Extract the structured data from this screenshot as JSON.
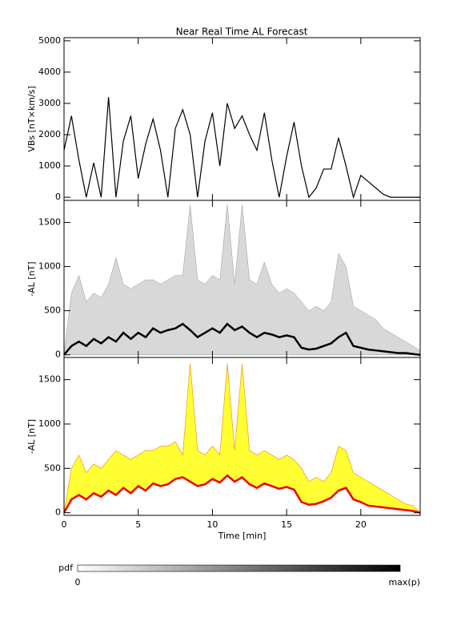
{
  "chart_data": [
    {
      "type": "line",
      "title": "Near Real Time AL Forecast",
      "ylabel": "VBs [nT×km/s]",
      "x": [
        0,
        0.5,
        1,
        1.5,
        2,
        2.5,
        3,
        3.5,
        4,
        4.5,
        5,
        5.5,
        6,
        6.5,
        7,
        7.5,
        8,
        8.5,
        9,
        9.5,
        10,
        10.5,
        11,
        11.5,
        12,
        12.5,
        13,
        13.5,
        14,
        14.5,
        15,
        15.5,
        16,
        16.5,
        17,
        17.5,
        18,
        18.5,
        19,
        19.5,
        20,
        20.5,
        21,
        21.5,
        22,
        22.5,
        23,
        23.5,
        24
      ],
      "series": [
        {
          "color": "#000000",
          "values": [
            1500,
            2600,
            1200,
            0,
            1100,
            0,
            3200,
            0,
            1800,
            2600,
            600,
            1700,
            2500,
            1500,
            0,
            2200,
            2800,
            2000,
            0,
            1800,
            2700,
            1000,
            3000,
            2200,
            2600,
            2000,
            1500,
            2700,
            1200,
            0,
            1300,
            2400,
            1000,
            0,
            300,
            900,
            900,
            1900,
            1000,
            0,
            700,
            500,
            300,
            100,
            0,
            0,
            0,
            0,
            0
          ]
        }
      ],
      "xlim": [
        0,
        24
      ],
      "ylim": [
        -100,
        5100
      ],
      "yticks": [
        0,
        1000,
        2000,
        3000,
        4000,
        5000
      ]
    },
    {
      "type": "density",
      "ylabel": "-AL [nT]",
      "x": [
        0,
        0.5,
        1,
        1.5,
        2,
        2.5,
        3,
        3.5,
        4,
        4.5,
        5,
        5.5,
        6,
        6.5,
        7,
        7.5,
        8,
        8.5,
        9,
        9.5,
        10,
        10.5,
        11,
        11.5,
        12,
        12.5,
        13,
        13.5,
        14,
        14.5,
        15,
        15.5,
        16,
        16.5,
        17,
        17.5,
        18,
        18.5,
        19,
        19.5,
        20,
        20.5,
        21,
        21.5,
        22,
        22.5,
        23,
        23.5,
        24
      ],
      "series": [
        {
          "color": "#c8c8c8",
          "values": [
            0,
            700,
            900,
            600,
            700,
            650,
            800,
            1100,
            800,
            750,
            800,
            850,
            850,
            800,
            850,
            900,
            900,
            1700,
            850,
            800,
            900,
            850,
            1700,
            800,
            1700,
            850,
            800,
            1050,
            800,
            700,
            750,
            700,
            600,
            500,
            550,
            500,
            600,
            1150,
            1000,
            550,
            500,
            450,
            400,
            300,
            250,
            200,
            150,
            100,
            50
          ]
        },
        {
          "color": "#000000",
          "values": [
            0,
            100,
            150,
            100,
            180,
            130,
            200,
            150,
            250,
            180,
            250,
            200,
            300,
            250,
            280,
            300,
            350,
            280,
            200,
            250,
            300,
            250,
            350,
            280,
            320,
            250,
            200,
            250,
            230,
            200,
            220,
            200,
            80,
            60,
            70,
            100,
            130,
            200,
            250,
            100,
            80,
            60,
            50,
            40,
            30,
            20,
            20,
            10,
            0
          ]
        }
      ],
      "xlim": [
        0,
        24
      ],
      "ylim": [
        -30,
        1750
      ],
      "yticks": [
        0,
        500,
        1000,
        1500
      ]
    },
    {
      "type": "band",
      "ylabel": "-AL [nT]",
      "xlabel": "Time [min]",
      "x": [
        0,
        0.5,
        1,
        1.5,
        2,
        2.5,
        3,
        3.5,
        4,
        4.5,
        5,
        5.5,
        6,
        6.5,
        7,
        7.5,
        8,
        8.5,
        9,
        9.5,
        10,
        10.5,
        11,
        11.5,
        12,
        12.5,
        13,
        13.5,
        14,
        14.5,
        15,
        15.5,
        16,
        16.5,
        17,
        17.5,
        18,
        18.5,
        19,
        19.5,
        20,
        20.5,
        21,
        21.5,
        22,
        22.5,
        23,
        23.5,
        24
      ],
      "series": [
        {
          "color": "#ffff33",
          "values": [
            0,
            500,
            650,
            450,
            550,
            500,
            600,
            700,
            650,
            600,
            650,
            700,
            700,
            750,
            750,
            800,
            650,
            1680,
            700,
            650,
            750,
            650,
            1680,
            700,
            1680,
            700,
            650,
            700,
            650,
            600,
            650,
            600,
            500,
            350,
            400,
            350,
            450,
            750,
            700,
            450,
            400,
            350,
            300,
            250,
            200,
            150,
            100,
            80,
            0
          ]
        },
        {
          "color": "#ee0000",
          "values": [
            0,
            150,
            200,
            150,
            220,
            180,
            250,
            200,
            280,
            220,
            300,
            250,
            330,
            300,
            320,
            380,
            400,
            350,
            300,
            320,
            380,
            340,
            420,
            350,
            400,
            320,
            280,
            330,
            300,
            270,
            290,
            260,
            120,
            90,
            100,
            130,
            170,
            250,
            280,
            150,
            120,
            80,
            70,
            60,
            50,
            40,
            30,
            20,
            0
          ]
        }
      ],
      "xlim": [
        0,
        24
      ],
      "xticks": [
        0,
        5,
        10,
        15,
        20
      ],
      "ylim": [
        -30,
        1750
      ],
      "yticks": [
        0,
        500,
        1000,
        1500
      ]
    }
  ],
  "colorbar": {
    "label": "pdf",
    "min_label": "0",
    "max_label": "max(p)"
  }
}
